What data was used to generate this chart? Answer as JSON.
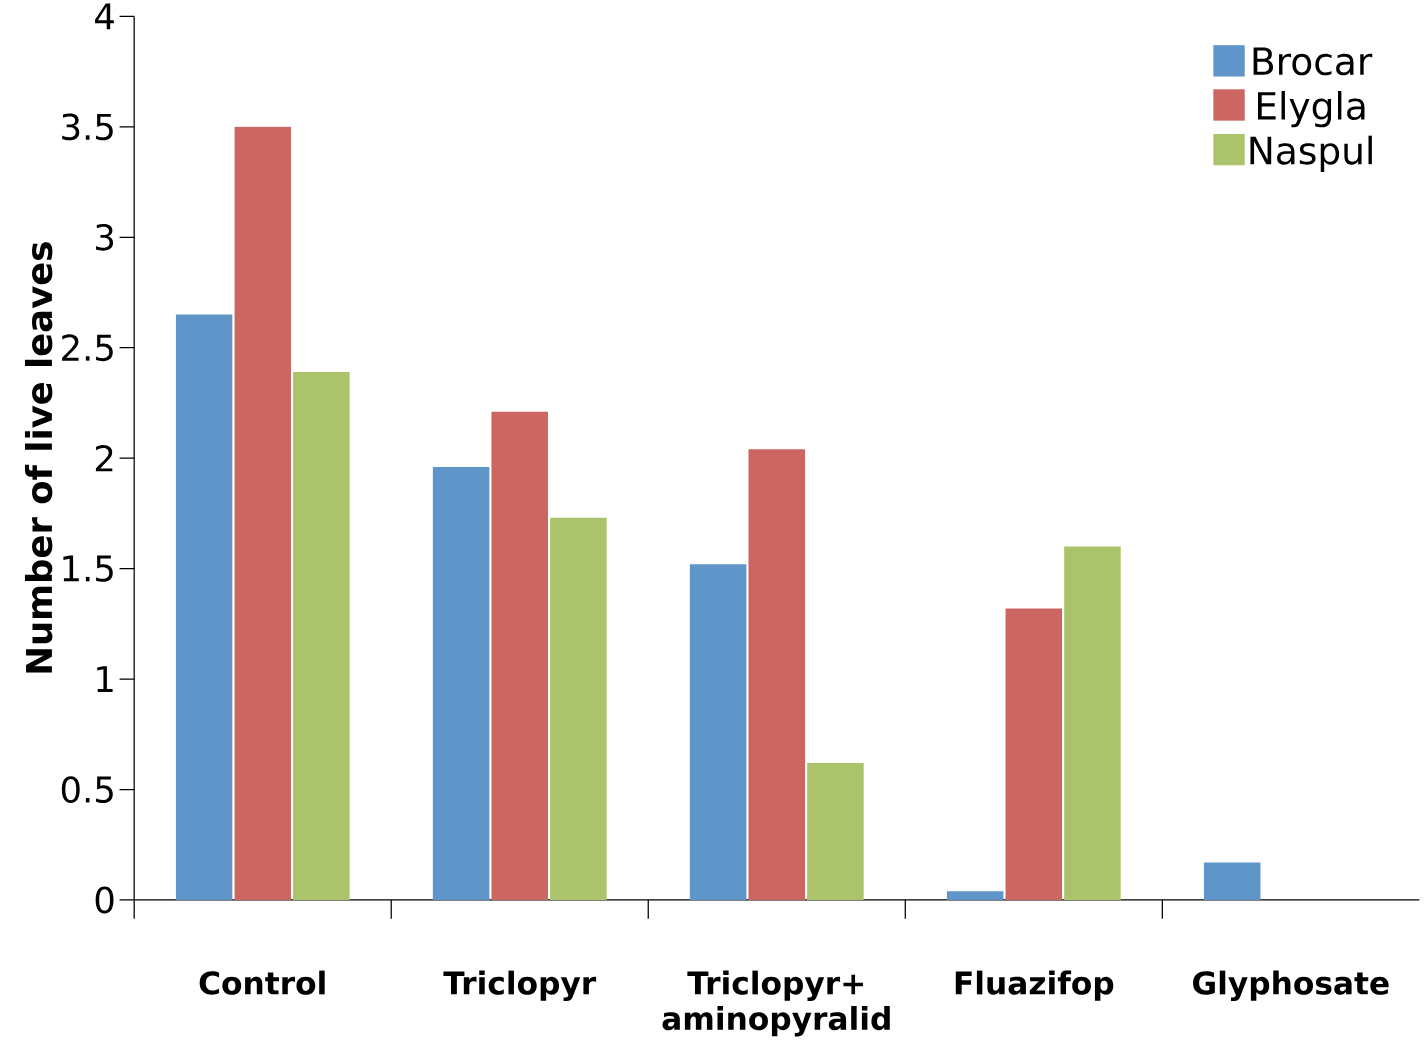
{
  "chart_data": {
    "type": "bar",
    "ylabel": "Number of live leaves",
    "categories": [
      "Control",
      "Triclopyr",
      "Triclopyr+ aminopyralid",
      "Fluazifop",
      "Glyphosate"
    ],
    "series": [
      {
        "name": "Brocar",
        "color": "#6095c9",
        "values": [
          2.65,
          1.96,
          1.52,
          0.04,
          0.17
        ]
      },
      {
        "name": "Elygla",
        "color": "#cd6560",
        "values": [
          3.5,
          2.21,
          2.04,
          1.32,
          0
        ]
      },
      {
        "name": "Naspul",
        "color": "#abc46b",
        "values": [
          2.39,
          1.73,
          0.62,
          1.6,
          0
        ]
      }
    ],
    "ylim": [
      0,
      4
    ],
    "yticks": [
      0,
      0.5,
      1,
      1.5,
      2,
      2.5,
      3,
      3.5,
      4
    ],
    "grid": false,
    "legend": "top right"
  }
}
